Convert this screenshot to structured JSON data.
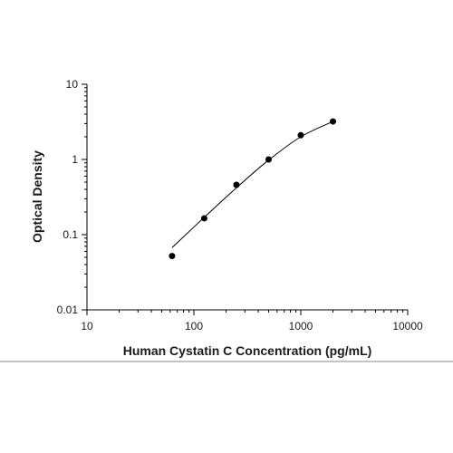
{
  "chart_data": {
    "type": "scatter",
    "title": "",
    "xlabel": "Human Cystatin C Concentration (pg/mL)",
    "ylabel": "Optical Density",
    "xscale": "log",
    "yscale": "log",
    "xlim": [
      10,
      10000
    ],
    "ylim": [
      0.01,
      10
    ],
    "x_ticks": [
      10,
      100,
      1000,
      10000
    ],
    "x_tick_labels": [
      "10",
      "100",
      "1000",
      "10000"
    ],
    "y_ticks": [
      10,
      1,
      0.1,
      0.01
    ],
    "y_tick_labels": [
      "10",
      "1",
      "0.1",
      "0.01"
    ],
    "grid": false,
    "legend": "none",
    "series": [
      {
        "x": [
          62.5,
          125,
          250,
          500,
          1000,
          2000
        ],
        "y": [
          0.052,
          0.165,
          0.46,
          1.0,
          2.1,
          3.2
        ]
      }
    ],
    "fit_curve": {
      "x": [
        62.5,
        125,
        250,
        500,
        1000,
        2000
      ],
      "y": [
        0.067,
        0.17,
        0.42,
        0.98,
        2.0,
        3.2
      ]
    },
    "colors": {
      "points": "#000000",
      "line": "#000000",
      "axis": "#000000"
    }
  }
}
